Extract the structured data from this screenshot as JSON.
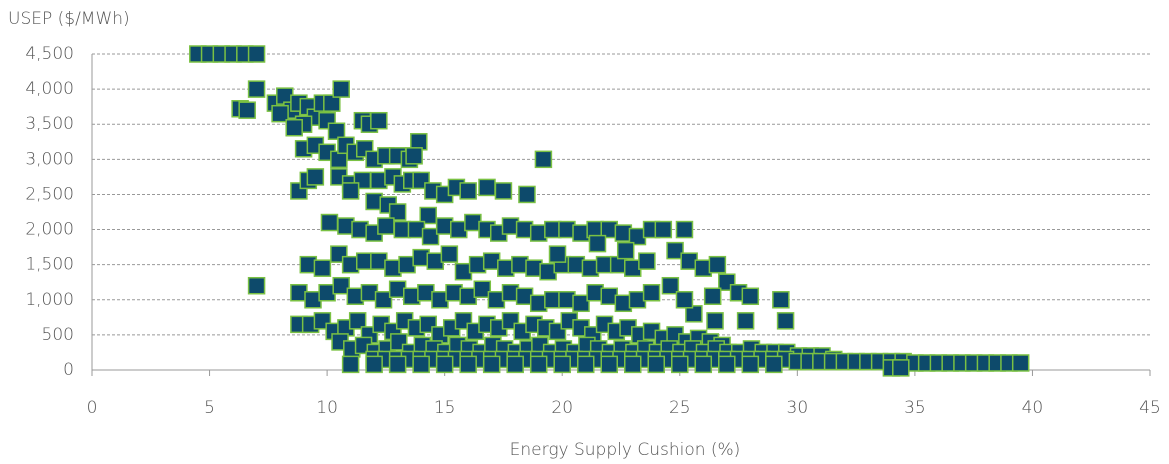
{
  "chart_data": {
    "type": "scatter",
    "ylabel": "USEP ($/MWh)",
    "xlabel": "Energy Supply Cushion (%)",
    "xlim": [
      0,
      45
    ],
    "ylim": [
      0,
      4500
    ],
    "xticks": [
      0,
      5,
      10,
      15,
      20,
      25,
      30,
      35,
      40,
      45
    ],
    "yticks": [
      0,
      500,
      {
        "value": 1000,
        "label": "1,000"
      },
      {
        "value": 1500,
        "label": "1,500"
      },
      {
        "value": 2000,
        "label": "2,000"
      },
      {
        "value": 2500,
        "label": "2,500"
      },
      {
        "value": 3000,
        "label": "3,000"
      },
      {
        "value": 3500,
        "label": "3,500"
      },
      {
        "value": 4000,
        "label": "4,000"
      },
      {
        "value": 4500,
        "label": "4,500"
      }
    ],
    "grid": true,
    "color": "#0d4a6b",
    "edgecolor": "#7ac143",
    "x": [
      4.5,
      5,
      5.5,
      6,
      6.5,
      7,
      7,
      6.3,
      6.6,
      7.8,
      8.2,
      8.5,
      8,
      8.8,
      9.2,
      9.5,
      9.8,
      10.2,
      10.6,
      9,
      8.6,
      10,
      11.5,
      11.8,
      12.2,
      10.4,
      9,
      9.5,
      10,
      10.5,
      10.8,
      11.2,
      11.6,
      12,
      12.5,
      13,
      13.5,
      13.9,
      13.7,
      19.2,
      8.8,
      9.2,
      9.5,
      10.5,
      11,
      11.5,
      12.2,
      12.8,
      13.2,
      13.6,
      14,
      14.5,
      15,
      15.5,
      16,
      16.8,
      17.5,
      18.5,
      11,
      12,
      12.6,
      13,
      14.3,
      10.1,
      10.8,
      11.4,
      12,
      12.5,
      13.2,
      13.8,
      14.4,
      15,
      15.6,
      16.2,
      16.8,
      17.3,
      17.8,
      18.4,
      19,
      19.6,
      20.2,
      20.8,
      21.4,
      22,
      22.6,
      23.2,
      23.8,
      24.3,
      25.2,
      24.8,
      25.4,
      26,
      26.6,
      27,
      27.5,
      26.4,
      28,
      29.3,
      29.5,
      27.8,
      26.5,
      25.6,
      7,
      9.2,
      9.8,
      10.5,
      11,
      11.6,
      12.2,
      12.8,
      13.4,
      14,
      14.6,
      15.2,
      15.8,
      16.4,
      17,
      17.6,
      18.2,
      18.8,
      19.4,
      20,
      20.6,
      21.2,
      21.8,
      22.4,
      23,
      23.6,
      22.7,
      21.5,
      19.8,
      8.8,
      9.4,
      10,
      10.6,
      11.2,
      11.8,
      12.4,
      13,
      13.6,
      14.2,
      14.8,
      15.4,
      16,
      16.6,
      17.2,
      17.8,
      18.4,
      19,
      19.6,
      20.2,
      20.8,
      21.4,
      22,
      22.6,
      23.2,
      23.8,
      24.6,
      25.2,
      8.8,
      9.3,
      9.8,
      10.3,
      10.8,
      11.3,
      11.8,
      12.3,
      12.8,
      13.3,
      13.8,
      14.3,
      14.8,
      15.3,
      15.8,
      16.3,
      16.8,
      17.3,
      17.8,
      18.3,
      18.8,
      19.3,
      19.8,
      20.3,
      20.8,
      21.3,
      21.8,
      22.3,
      22.8,
      23.3,
      23.8,
      24.3,
      24.8,
      25.3,
      25.8,
      26.3,
      26.8,
      10.55,
      11.05,
      11.55,
      12.05,
      12.55,
      13.05,
      13.55,
      14.05,
      14.55,
      15.05,
      15.55,
      16.05,
      16.55,
      17.05,
      17.55,
      18.05,
      18.55,
      19.05,
      19.55,
      20.05,
      20.55,
      21.05,
      21.55,
      22.05,
      22.55,
      23.05,
      23.55,
      24.05,
      24.55,
      25.05,
      25.55,
      26.05,
      26.55,
      27.05,
      27.55,
      28.05,
      28.55,
      29.05,
      29.55,
      30.05,
      30.55,
      31.05,
      31.55,
      12,
      12.5,
      13,
      13.5,
      14,
      14.5,
      15,
      15.5,
      16,
      16.5,
      17,
      17.5,
      18,
      18.5,
      19,
      19.5,
      20,
      20.5,
      21,
      21.5,
      22,
      22.5,
      23,
      23.5,
      24,
      24.5,
      25,
      25.5,
      26,
      26.5,
      27,
      27.5,
      28,
      28.5,
      29,
      29.5,
      30,
      30.5,
      31,
      31.5,
      32,
      32.5,
      33,
      33.5,
      34,
      34.5,
      35,
      35.5,
      36,
      36.5,
      37,
      37.5,
      38,
      38.5,
      39,
      39.5,
      34,
      34.4,
      11,
      12,
      13,
      14,
      15,
      16,
      17,
      18,
      19,
      20,
      21,
      22,
      23,
      24,
      25,
      26,
      27,
      28,
      29
    ],
    "values": [
      4500,
      4500,
      4500,
      4500,
      4500,
      4500,
      4000,
      3720,
      3700,
      3800,
      3900,
      3700,
      3650,
      3800,
      3750,
      3600,
      3800,
      3800,
      4000,
      3500,
      3450,
      3550,
      3550,
      3500,
      3550,
      3400,
      3150,
      3200,
      3100,
      3000,
      3200,
      3100,
      3150,
      3000,
      3050,
      3050,
      3000,
      3250,
      3050,
      3000,
      2550,
      2700,
      2750,
      2750,
      2650,
      2700,
      2700,
      2750,
      2650,
      2700,
      2700,
      2550,
      2500,
      2600,
      2550,
      2600,
      2550,
      2500,
      2550,
      2400,
      2350,
      2250,
      2200,
      2100,
      2050,
      2000,
      1950,
      2050,
      2000,
      2000,
      1900,
      2050,
      2000,
      2100,
      2000,
      1950,
      2050,
      2000,
      1950,
      2000,
      2000,
      1950,
      2000,
      2000,
      1950,
      1900,
      2000,
      2000,
      2000,
      1700,
      1550,
      1450,
      1500,
      1250,
      1100,
      1050,
      1050,
      1000,
      700,
      700,
      700,
      800,
      1200,
      1500,
      1450,
      1650,
      1500,
      1550,
      1550,
      1450,
      1500,
      1600,
      1550,
      1650,
      1400,
      1500,
      1550,
      1450,
      1500,
      1450,
      1400,
      1500,
      1500,
      1450,
      1500,
      1500,
      1450,
      1550,
      1700,
      1800,
      1650,
      1100,
      1000,
      1100,
      1200,
      1050,
      1100,
      1000,
      1150,
      1050,
      1100,
      1000,
      1100,
      1050,
      1150,
      1000,
      1100,
      1050,
      950,
      1000,
      1000,
      950,
      1100,
      1050,
      950,
      1000,
      1100,
      1200,
      1000,
      650,
      650,
      700,
      550,
      600,
      700,
      500,
      650,
      550,
      700,
      600,
      650,
      500,
      600,
      700,
      550,
      650,
      600,
      700,
      550,
      650,
      600,
      550,
      700,
      600,
      500,
      650,
      550,
      600,
      500,
      550,
      450,
      500,
      400,
      450,
      400,
      350,
      400,
      300,
      350,
      250,
      300,
      400,
      250,
      350,
      300,
      250,
      350,
      300,
      250,
      350,
      300,
      250,
      300,
      350,
      250,
      300,
      250,
      350,
      300,
      250,
      300,
      250,
      300,
      250,
      300,
      250,
      300,
      250,
      300,
      250,
      250,
      300,
      250,
      250,
      250,
      200,
      200,
      200,
      150,
      150,
      150,
      150,
      150,
      150,
      150,
      150,
      150,
      150,
      150,
      150,
      150,
      150,
      150,
      150,
      150,
      150,
      150,
      150,
      150,
      150,
      150,
      150,
      150,
      150,
      150,
      150,
      150,
      150,
      150,
      150,
      150,
      150,
      150,
      150,
      150,
      120,
      120,
      120,
      120,
      120,
      120,
      120,
      120,
      120,
      120,
      100,
      100,
      100,
      100,
      100,
      100,
      100,
      100,
      100,
      100,
      30,
      30,
      80,
      80,
      80,
      80,
      80,
      80,
      80,
      80,
      80,
      80,
      80,
      80,
      80,
      80,
      80,
      80,
      80,
      80,
      80
    ]
  }
}
